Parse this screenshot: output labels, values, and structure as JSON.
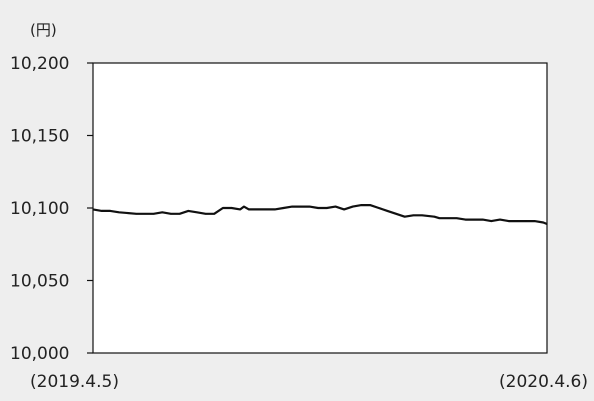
{
  "chart_data": {
    "type": "line",
    "unit_label": "(円)",
    "y_tick_labels": [
      "10,200",
      "10,150",
      "10,100",
      "10,050",
      "10,000"
    ],
    "y_ticks": [
      10200,
      10150,
      10100,
      10050,
      10000
    ],
    "ylim": [
      10000,
      10200
    ],
    "x_start_label": "(2019.4.5)",
    "x_end_label": "(2020.4.6)",
    "xlim": [
      "2019-04-05",
      "2020-04-06"
    ],
    "grid": false,
    "line_color": "#111111",
    "series": [
      {
        "x": [
          "2019-04-05",
          "2019-04-12",
          "2019-04-19",
          "2019-04-26",
          "2019-05-10",
          "2019-05-17",
          "2019-05-24",
          "2019-05-31",
          "2019-06-07",
          "2019-06-14",
          "2019-06-21",
          "2019-06-28",
          "2019-07-05",
          "2019-07-12",
          "2019-07-19",
          "2019-07-26",
          "2019-08-02",
          "2019-08-05",
          "2019-08-09",
          "2019-08-16",
          "2019-08-23",
          "2019-08-30",
          "2019-09-06",
          "2019-09-13",
          "2019-09-20",
          "2019-09-27",
          "2019-10-04",
          "2019-10-11",
          "2019-10-18",
          "2019-10-25",
          "2019-11-01",
          "2019-11-08",
          "2019-11-15",
          "2019-11-22",
          "2019-11-29",
          "2019-12-06",
          "2019-12-13",
          "2019-12-20",
          "2019-12-27",
          "2020-01-06",
          "2020-01-10",
          "2020-01-17",
          "2020-01-24",
          "2020-01-31",
          "2020-02-07",
          "2020-02-14",
          "2020-02-21",
          "2020-02-28",
          "2020-03-06",
          "2020-03-13",
          "2020-03-20",
          "2020-03-27",
          "2020-04-03",
          "2020-04-06"
        ],
        "values": [
          10099,
          10098,
          10098,
          10097,
          10096,
          10096,
          10096,
          10097,
          10096,
          10096,
          10098,
          10097,
          10096,
          10096,
          10100,
          10100,
          10099,
          10101,
          10099,
          10099,
          10099,
          10099,
          10100,
          10101,
          10101,
          10101,
          10100,
          10100,
          10101,
          10099,
          10101,
          10102,
          10102,
          10100,
          10098,
          10096,
          10094,
          10095,
          10095,
          10094,
          10093,
          10093,
          10093,
          10092,
          10092,
          10092,
          10091,
          10092,
          10091,
          10091,
          10091,
          10091,
          10090,
          10089
        ]
      }
    ]
  }
}
